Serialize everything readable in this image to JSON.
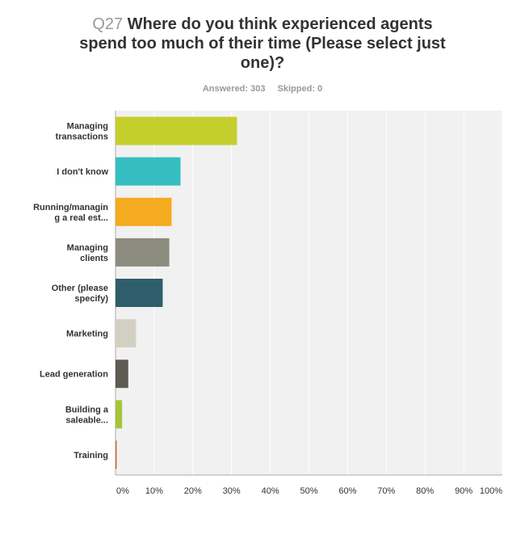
{
  "question": {
    "number": "Q27",
    "text": "Where do you think experienced agents spend too much of their time (Please select just one)?"
  },
  "stats": {
    "answered": "Answered: 303",
    "skipped": "Skipped: 0"
  },
  "chart_data": {
    "type": "bar",
    "orientation": "horizontal",
    "categories": [
      [
        "Managing",
        "transactions"
      ],
      [
        "I don't know"
      ],
      [
        "Running/managin",
        "g a real est..."
      ],
      [
        "Managing",
        "clients"
      ],
      [
        "Other (please",
        "specify)"
      ],
      [
        "Marketing"
      ],
      [
        "Lead generation"
      ],
      [
        "Building a",
        "saleable..."
      ],
      [
        "Training"
      ]
    ],
    "values": [
      31.4,
      16.8,
      14.5,
      13.9,
      12.2,
      5.3,
      3.3,
      1.7,
      0.3
    ],
    "colors": [
      "#c4cf2e",
      "#35bec2",
      "#f5ab1f",
      "#8c8c7e",
      "#2e5e6c",
      "#d1d0c3",
      "#5e5c52",
      "#a8c43a",
      "#d9622b"
    ],
    "xticks": [
      "0%",
      "10%",
      "20%",
      "30%",
      "40%",
      "50%",
      "60%",
      "70%",
      "80%",
      "90%",
      "100%"
    ],
    "xlim": [
      0,
      100
    ],
    "grid": true
  }
}
